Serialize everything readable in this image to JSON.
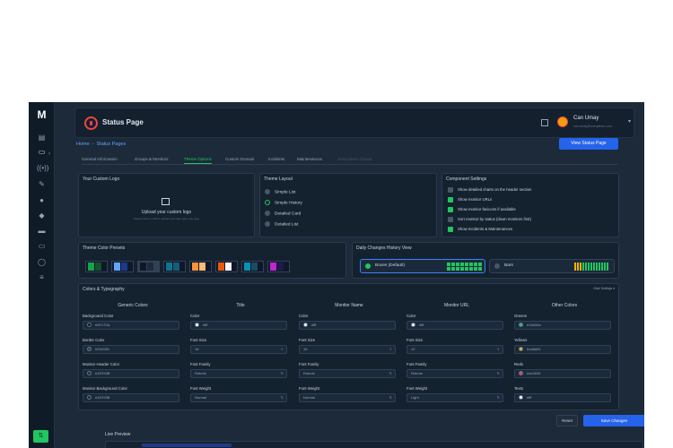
{
  "app": {
    "logo": "M",
    "title": "Status Page"
  },
  "user": {
    "name": "Can Umay",
    "email": "can.umay@oneuptime.com"
  },
  "breadcrumb": [
    "Home",
    "Status Pages"
  ],
  "view_button": "View Status Page",
  "tabs": [
    "General Information",
    "Groups & Monitors",
    "Theme Options",
    "Custom Domain",
    "Incidents",
    "Maintenances",
    "Subscribers (Soon)"
  ],
  "active_tab": "Theme Options",
  "logo_card": {
    "title": "Your Custom Logo",
    "upload": "Upload your custom logo",
    "hint": "Drag & drop or click to upload your logo (png, svg, jpg)"
  },
  "theme_layout": {
    "title": "Theme Layout",
    "options": [
      "Simple List",
      "Simple History",
      "Detailed Card",
      "Detailed List"
    ],
    "selected": "Simple History"
  },
  "component_settings": {
    "title": "Component Settings",
    "items": [
      {
        "label": "Show detailed charts on the header section",
        "checked": false
      },
      {
        "label": "Show monitor URLs",
        "checked": true
      },
      {
        "label": "Show monitor favicons if available",
        "checked": true
      },
      {
        "label": "Sort monitor by status (down monitors first)",
        "checked": false
      },
      {
        "label": "Show Incidents & Maintenances",
        "checked": true
      }
    ]
  },
  "presets": {
    "title": "Theme Color Presets",
    "swatches": [
      [
        "#16a34a",
        "#14532d",
        "#0f172a"
      ],
      [
        "#60a5fa",
        "#1e3a8a",
        "#0f172a"
      ],
      [
        "#0f172a",
        "#1e293b",
        "#334155"
      ],
      [
        "#0e7490",
        "#155e75",
        "#0f172a"
      ],
      [
        "#fb923c",
        "#fdba74",
        "#0f172a"
      ],
      [
        "#ea580c",
        "#f8fafc",
        "#0f172a"
      ],
      [
        "#0891b2",
        "#164e63",
        "#0f172a"
      ],
      [
        "#c026d3",
        "#1e1b4b",
        "#0f172a"
      ]
    ]
  },
  "history_view": {
    "title": "Daily Changes History View",
    "options": [
      "Boxes (Default)",
      "Bars"
    ],
    "selected": "Boxes (Default)"
  },
  "colors": {
    "title": "Colors & Typography",
    "hide_label": "Hide Settings",
    "columns": [
      "Generic Colors",
      "Title",
      "Monitor Name",
      "Monitor URL",
      "Other Colors"
    ],
    "generic": [
      {
        "label": "Background Color",
        "value": "#0F172A"
      },
      {
        "label": "Border Color",
        "value": "#334155"
      },
      {
        "label": "Monitor Header Color",
        "value": "#1E293B"
      },
      {
        "label": "Monitor Background Color",
        "value": "#1E293B"
      }
    ],
    "title_fields": [
      {
        "label": "Color",
        "value": "#fff"
      },
      {
        "label": "Font Size",
        "value": "16"
      },
      {
        "label": "Font Family",
        "value": "Roboto"
      },
      {
        "label": "Font Weight",
        "value": "Normal"
      }
    ],
    "monitor_name": [
      {
        "label": "Color",
        "value": "#fff"
      },
      {
        "label": "Font Size",
        "value": "16"
      },
      {
        "label": "Font Family",
        "value": "Roboto"
      },
      {
        "label": "Font Weight",
        "value": "Normal"
      }
    ],
    "monitor_url": [
      {
        "label": "Color",
        "value": "#fff"
      },
      {
        "label": "Font Size",
        "value": "12"
      },
      {
        "label": "Font Family",
        "value": "Roboto"
      },
      {
        "label": "Font Weight",
        "value": "Light"
      }
    ],
    "other": [
      {
        "label": "Greens",
        "value": "#16a34a",
        "color": "#22c55e"
      },
      {
        "label": "Yellows",
        "value": "#ca8a04",
        "color": "#eab308"
      },
      {
        "label": "Reds",
        "value": "#dc2626",
        "color": "#ef4444"
      },
      {
        "label": "Texts",
        "value": "#fff",
        "color": "#ffffff"
      }
    ]
  },
  "actions": {
    "reset": "Reset",
    "save": "Save Changes"
  },
  "live_preview": "Live Preview"
}
